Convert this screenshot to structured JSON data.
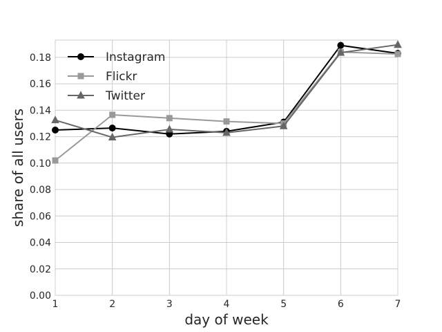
{
  "chart_data": {
    "type": "line",
    "title": "",
    "xlabel": "day of week",
    "ylabel": "share of all users",
    "x": [
      1,
      2,
      3,
      4,
      5,
      6,
      7
    ],
    "xlim": [
      1,
      7
    ],
    "ylim": [
      0,
      0.193
    ],
    "xticks": [
      "1",
      "2",
      "3",
      "4",
      "5",
      "6",
      "7"
    ],
    "yticks": [
      "0.00",
      "0.02",
      "0.04",
      "0.06",
      "0.08",
      "0.10",
      "0.12",
      "0.14",
      "0.16",
      "0.18"
    ],
    "grid": true,
    "legend_position": "upper-left",
    "series": [
      {
        "name": "Instagram",
        "color": "#000000",
        "marker": "circle",
        "values": [
          0.125,
          0.1265,
          0.122,
          0.124,
          0.131,
          0.189,
          0.183
        ]
      },
      {
        "name": "Flickr",
        "color": "#999999",
        "marker": "square",
        "values": [
          0.102,
          0.1365,
          0.134,
          0.1315,
          0.13,
          0.184,
          0.1825
        ]
      },
      {
        "name": "Twitter",
        "color": "#666666",
        "marker": "triangle",
        "values": [
          0.1325,
          0.1195,
          0.1255,
          0.123,
          0.128,
          0.1835,
          0.1895
        ]
      }
    ]
  }
}
